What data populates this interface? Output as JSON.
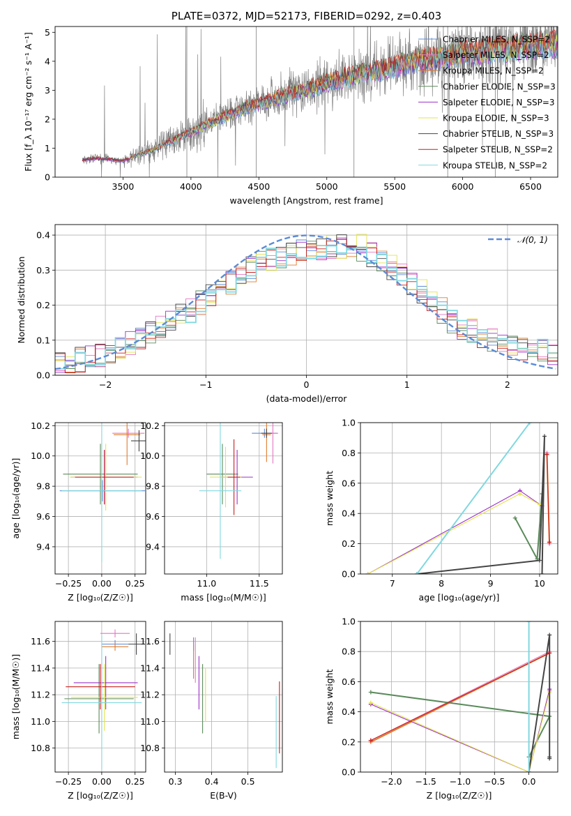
{
  "chart_data": [
    {
      "id": "spectrum",
      "type": "line",
      "title": "PLATE=0372, MJD=52173, FIBERID=0292, z=0.403",
      "xlabel": "wavelength [Angstrom, rest frame]",
      "ylabel": "Flux [f_λ 10⁻¹⁷ erg cm⁻² s⁻¹ A⁻¹]",
      "xlim": [
        3000,
        6700
      ],
      "ylim": [
        0,
        5.2
      ],
      "xticks": [
        3500,
        4000,
        4500,
        5000,
        5500,
        6000,
        6500
      ],
      "yticks": [
        0,
        1,
        2,
        3,
        4,
        5
      ],
      "grid": false,
      "legend_position": "top-right",
      "data_trend": {
        "x": [
          3200,
          3300,
          3400,
          3500,
          3600,
          3700,
          3800,
          3900,
          4000,
          4100,
          4200,
          4300,
          4400,
          4500,
          4600,
          4700,
          4800,
          4900,
          5000,
          5100,
          5200,
          5300,
          5400,
          5500,
          5600,
          5700,
          5800,
          5900,
          6000,
          6100,
          6200,
          6300,
          6400,
          6500,
          6600
        ],
        "y": [
          0.6,
          0.65,
          0.62,
          0.55,
          0.75,
          0.9,
          1.15,
          1.35,
          1.55,
          1.8,
          2.0,
          2.2,
          2.4,
          2.55,
          2.7,
          2.85,
          3.0,
          3.1,
          3.3,
          3.4,
          3.55,
          3.65,
          3.7,
          3.85,
          3.95,
          4.05,
          4.15,
          4.2,
          4.3,
          4.3,
          4.4,
          4.45,
          4.5,
          4.55,
          4.6
        ]
      },
      "series": [
        {
          "name": "Chabrier MILES, N_SSP=2",
          "color": "#5b8bd6"
        },
        {
          "name": "Salpeter MILES, N_SSP=2",
          "color": "#e377c2"
        },
        {
          "name": "Kroupa MILES, N_SSP=2",
          "color": "#e07b2e"
        },
        {
          "name": "Chabrier ELODIE, N_SSP=3",
          "color": "#5a8a5a"
        },
        {
          "name": "Salpeter ELODIE, N_SSP=3",
          "color": "#9b30c8"
        },
        {
          "name": "Kroupa ELODIE, N_SSP=3",
          "color": "#e3e34a"
        },
        {
          "name": "Chabrier STELIB, N_SSP=3",
          "color": "#444444"
        },
        {
          "name": "Salpeter STELIB, N_SSP=2",
          "color": "#c81e1e"
        },
        {
          "name": "Kroupa STELIB, N_SSP=2",
          "color": "#80d8e0"
        }
      ]
    },
    {
      "id": "residuals",
      "type": "line",
      "xlabel": "(data-model)/error",
      "ylabel": "Normed distribution",
      "xlim": [
        -2.5,
        2.5
      ],
      "ylim": [
        0,
        0.43
      ],
      "xticks": [
        -2,
        -1,
        0,
        1,
        2
      ],
      "yticks": [
        0.0,
        0.1,
        0.2,
        0.3,
        0.4
      ],
      "grid": true,
      "legend_position": "top-right",
      "reference_curve": {
        "name": "𝒩(0, 1)",
        "color": "#5b8bd6"
      },
      "hist_bin_width": 0.1,
      "hist_trend": {
        "x": [
          -2.5,
          -2.0,
          -1.5,
          -1.0,
          -0.5,
          0.0,
          0.5,
          1.0,
          1.5,
          2.0,
          2.5
        ],
        "y": [
          0.03,
          0.06,
          0.13,
          0.22,
          0.32,
          0.36,
          0.37,
          0.27,
          0.14,
          0.08,
          0.06
        ]
      }
    },
    {
      "id": "age-vs-Z",
      "type": "scatter",
      "xlabel": "Z [log₁₀(Z/Z☉)]",
      "ylabel": "age  [log₁₀(age/yr)]",
      "xlim": [
        -0.35,
        0.33
      ],
      "ylim": [
        9.22,
        10.22
      ],
      "xticks": [
        -0.25,
        0.0,
        0.25
      ],
      "yticks": [
        9.4,
        9.6,
        9.8,
        10.0,
        10.2
      ],
      "grid": true,
      "points": [
        {
          "x": 0.005,
          "y": 9.77,
          "xerr": 0.32,
          "yerr": 0.07,
          "color": "#5b8bd6"
        },
        {
          "x": 0.2,
          "y": 10.15,
          "xerr": 0.12,
          "yerr": 0.03,
          "color": "#e377c2"
        },
        {
          "x": 0.19,
          "y": 10.14,
          "xerr": 0.1,
          "yerr": 0.2,
          "color": "#e07b2e"
        },
        {
          "x": -0.01,
          "y": 9.88,
          "xerr": 0.28,
          "yerr": 0.2,
          "color": "#5a8a5a"
        },
        {
          "x": 0.02,
          "y": 9.86,
          "xerr": 0.25,
          "yerr": 0.18,
          "color": "#9b30c8"
        },
        {
          "x": 0.03,
          "y": 9.86,
          "xerr": 0.27,
          "yerr": 0.22,
          "color": "#e3e34a"
        },
        {
          "x": 0.28,
          "y": 10.1,
          "xerr": 0.06,
          "yerr": 0.07,
          "color": "#444444"
        },
        {
          "x": 0.02,
          "y": 9.86,
          "xerr": 0.22,
          "yerr": 0.18,
          "color": "#c81e1e"
        },
        {
          "x": 0.0,
          "y": 9.77,
          "xerr": 0.3,
          "yerr": 0.47,
          "color": "#80d8e0"
        }
      ]
    },
    {
      "id": "age-vs-mass",
      "type": "scatter",
      "xlabel": "mass [log₁₀(M/M☉)]",
      "ylabel": "",
      "xlim": [
        10.6,
        11.72
      ],
      "ylim": [
        9.22,
        10.22
      ],
      "xticks": [
        11.0,
        11.5
      ],
      "yticks": [
        9.4,
        9.6,
        9.8,
        10.0,
        10.2
      ],
      "grid": true,
      "points": [
        {
          "x": 11.55,
          "y": 10.15,
          "xerr": 0.12,
          "yerr": 0.03,
          "color": "#5b8bd6"
        },
        {
          "x": 11.63,
          "y": 10.15,
          "xerr": 0.05,
          "yerr": 0.2,
          "color": "#e377c2"
        },
        {
          "x": 11.57,
          "y": 10.14,
          "xerr": 0.04,
          "yerr": 0.18,
          "color": "#e07b2e"
        },
        {
          "x": 11.15,
          "y": 9.88,
          "xerr": 0.15,
          "yerr": 0.2,
          "color": "#5a8a5a"
        },
        {
          "x": 11.29,
          "y": 9.86,
          "xerr": 0.15,
          "yerr": 0.18,
          "color": "#9b30c8"
        },
        {
          "x": 11.18,
          "y": 9.86,
          "xerr": 0.15,
          "yerr": 0.2,
          "color": "#e3e34a"
        },
        {
          "x": 11.57,
          "y": 10.15,
          "xerr": 0.05,
          "yerr": 0.03,
          "color": "#444444"
        },
        {
          "x": 11.26,
          "y": 9.86,
          "xerr": 0.06,
          "yerr": 0.25,
          "color": "#c81e1e"
        },
        {
          "x": 11.13,
          "y": 9.77,
          "xerr": 0.2,
          "yerr": 0.45,
          "color": "#80d8e0"
        }
      ]
    },
    {
      "id": "weight-vs-age",
      "type": "line",
      "xlabel": "age  [log₁₀(age/yr)]",
      "ylabel": "mass weight",
      "xlim": [
        6.35,
        10.37
      ],
      "ylim": [
        0,
        1
      ],
      "xticks": [
        7,
        8,
        9,
        10
      ],
      "yticks": [
        0.0,
        0.2,
        0.4,
        0.6,
        0.8,
        1.0
      ],
      "grid": true,
      "series": [
        {
          "color": "#5b8bd6",
          "x": [
            7.5,
            9.8
          ],
          "y": [
            0.0,
            1.0
          ]
        },
        {
          "color": "#e377c2",
          "x": [
            10.15,
            10.2
          ],
          "y": [
            0.8,
            0.2
          ]
        },
        {
          "color": "#e07b2e",
          "x": [
            10.15,
            10.2
          ],
          "y": [
            0.79,
            0.21
          ]
        },
        {
          "color": "#5a8a5a",
          "x": [
            9.5,
            9.95,
            10.05
          ],
          "y": [
            0.37,
            0.1,
            0.53
          ]
        },
        {
          "color": "#9b30c8",
          "x": [
            6.5,
            9.6,
            10.05
          ],
          "y": [
            0.0,
            0.55,
            0.45
          ]
        },
        {
          "color": "#e3e34a",
          "x": [
            6.5,
            9.6,
            10.0
          ],
          "y": [
            0.0,
            0.53,
            0.46
          ]
        },
        {
          "color": "#444444",
          "x": [
            7.5,
            10.0,
            10.1,
            10.05
          ],
          "y": [
            0.0,
            0.09,
            0.91,
            0.0
          ]
        },
        {
          "color": "#c81e1e",
          "x": [
            10.15,
            10.2
          ],
          "y": [
            0.79,
            0.21
          ]
        },
        {
          "color": "#80d8e0",
          "x": [
            7.5,
            9.8
          ],
          "y": [
            0.0,
            1.0
          ]
        }
      ]
    },
    {
      "id": "mass-vs-Z",
      "type": "scatter",
      "xlabel": "Z [log₁₀(Z/Z☉)]",
      "ylabel": "mass [log₁₀(M/M☉)]",
      "xlim": [
        -0.35,
        0.33
      ],
      "ylim": [
        10.62,
        11.75
      ],
      "xticks": [
        -0.25,
        0.0,
        0.25
      ],
      "yticks": [
        10.8,
        11.0,
        11.2,
        11.4,
        11.6
      ],
      "grid": true,
      "points": [
        {
          "x": 0.1,
          "y": 11.58,
          "xerr": 0.1,
          "yerr": 0.03,
          "color": "#5b8bd6"
        },
        {
          "x": 0.1,
          "y": 11.66,
          "xerr": 0.11,
          "yerr": 0.03,
          "color": "#e377c2"
        },
        {
          "x": 0.1,
          "y": 11.56,
          "xerr": 0.1,
          "yerr": 0.03,
          "color": "#e07b2e"
        },
        {
          "x": -0.02,
          "y": 11.17,
          "xerr": 0.26,
          "yerr": 0.26,
          "color": "#5a8a5a"
        },
        {
          "x": 0.03,
          "y": 11.29,
          "xerr": 0.24,
          "yerr": 0.2,
          "color": "#9b30c8"
        },
        {
          "x": 0.02,
          "y": 11.18,
          "xerr": 0.25,
          "yerr": 0.25,
          "color": "#e3e34a"
        },
        {
          "x": 0.26,
          "y": 11.58,
          "xerr": 0.06,
          "yerr": 0.08,
          "color": "#444444"
        },
        {
          "x": -0.01,
          "y": 11.26,
          "xerr": 0.26,
          "yerr": 0.17,
          "color": "#c81e1e"
        },
        {
          "x": 0.0,
          "y": 11.14,
          "xerr": 0.3,
          "yerr": 0.5,
          "color": "#80d8e0"
        }
      ]
    },
    {
      "id": "mass-vs-ebv",
      "type": "scatter",
      "xlabel": "E(B-V)",
      "ylabel": "",
      "xlim": [
        0.27,
        0.595
      ],
      "ylim": [
        10.62,
        11.75
      ],
      "xticks": [
        0.3,
        0.4,
        0.5
      ],
      "yticks": [
        10.8,
        11.0,
        11.2,
        11.4,
        11.6
      ],
      "grid": true,
      "points": [
        {
          "x": 0.35,
          "y": 11.58,
          "yerr": 0.05,
          "color": "#5b8bd6"
        },
        {
          "x": 0.355,
          "y": 11.46,
          "yerr": 0.17,
          "color": "#e377c2"
        },
        {
          "x": 0.35,
          "y": 11.45,
          "yerr": 0.13,
          "color": "#e07b2e"
        },
        {
          "x": 0.375,
          "y": 11.17,
          "yerr": 0.26,
          "color": "#5a8a5a"
        },
        {
          "x": 0.365,
          "y": 11.29,
          "yerr": 0.2,
          "color": "#9b30c8"
        },
        {
          "x": 0.383,
          "y": 11.2,
          "yerr": 0.2,
          "color": "#e3e34a"
        },
        {
          "x": 0.285,
          "y": 11.58,
          "yerr": 0.08,
          "color": "#444444"
        },
        {
          "x": 0.587,
          "y": 11.03,
          "yerr": 0.27,
          "color": "#c81e1e"
        },
        {
          "x": 0.578,
          "y": 10.92,
          "yerr": 0.27,
          "color": "#80d8e0"
        }
      ]
    },
    {
      "id": "weight-vs-Z",
      "type": "line",
      "xlabel": "Z [log₁₀(Z/Z☉)]",
      "ylabel": "mass weight",
      "xlim": [
        -2.45,
        0.42
      ],
      "ylim": [
        0,
        1
      ],
      "xticks": [
        -2.0,
        -1.5,
        -1.0,
        -0.5,
        0.0
      ],
      "yticks": [
        0.0,
        0.2,
        0.4,
        0.6,
        0.8,
        1.0
      ],
      "grid": true,
      "series": [
        {
          "color": "#5b8bd6",
          "x": [
            0.0,
            0.0
          ],
          "y": [
            0.0,
            1.0
          ]
        },
        {
          "color": "#e377c2",
          "x": [
            -2.3,
            0.3,
            0.3
          ],
          "y": [
            0.21,
            0.8,
            0.54
          ]
        },
        {
          "color": "#e07b2e",
          "x": [
            -2.3,
            0.3
          ],
          "y": [
            0.2,
            0.79
          ]
        },
        {
          "color": "#5a8a5a",
          "x": [
            -2.3,
            0.3,
            0.0
          ],
          "y": [
            0.53,
            0.37,
            0.1
          ]
        },
        {
          "color": "#9b30c8",
          "x": [
            -2.3,
            0.0,
            0.3
          ],
          "y": [
            0.45,
            0.0,
            0.55
          ]
        },
        {
          "color": "#e3e34a",
          "x": [
            -2.3,
            0.0,
            0.3
          ],
          "y": [
            0.46,
            0.0,
            0.53
          ]
        },
        {
          "color": "#444444",
          "x": [
            0.0,
            0.3,
            0.3,
            0.3
          ],
          "y": [
            0.0,
            0.91,
            0.1,
            0.09
          ]
        },
        {
          "color": "#c81e1e",
          "x": [
            -2.3,
            0.3
          ],
          "y": [
            0.21,
            0.79
          ]
        },
        {
          "color": "#80d8e0",
          "x": [
            0.0,
            0.0
          ],
          "y": [
            0.0,
            1.0
          ]
        }
      ]
    }
  ]
}
